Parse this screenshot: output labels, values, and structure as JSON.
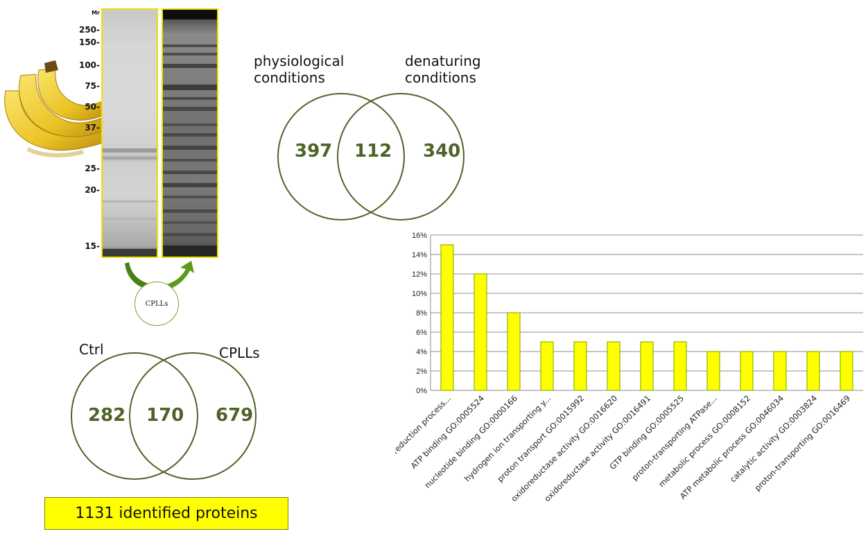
{
  "gel": {
    "mr_header": "Mr",
    "markers": [
      "250-",
      "150-",
      "100-",
      "75-",
      "50-",
      "37-",
      "25-",
      "20-",
      "15-"
    ]
  },
  "cpll_step": {
    "label": "CPLLs"
  },
  "venn_conditions": {
    "left_label_line1": "physiological",
    "left_label_line2": "conditions",
    "right_label_line1": "denaturing",
    "right_label_line2": "conditions",
    "left_only": "397",
    "overlap": "112",
    "right_only": "340"
  },
  "venn_treatment": {
    "left_label": "Ctrl",
    "right_label": "CPLLs",
    "left_only": "282",
    "overlap": "170",
    "right_only": "679"
  },
  "total_box": {
    "text": "1131 identified proteins"
  },
  "colors": {
    "bar_fill": "#ffff00",
    "bar_stroke": "#8db600",
    "venn_stroke": "#4f6228",
    "arrow": "#4a7f13"
  },
  "chart_data": {
    "type": "bar",
    "categories": [
      "oxidation-reduction process...",
      "ATP binding GO:0005524",
      "nucleotide binding GO:0000166",
      "hydrogen ion transporting y...",
      "proton transport GO:0015992",
      "oxidoreductase activity  GO:0016620",
      "oxidoreductase activity GO:0016491",
      "GTP binding GO:0005525",
      "proton-transporting ATPase...",
      "metabolic process GO:0008152",
      "ATP metabolic process GO:0046034",
      "catalytic activity GO:0003824",
      "proton-transporting  GO:0016469"
    ],
    "values": [
      15,
      12,
      8,
      5,
      5,
      5,
      5,
      5,
      4,
      4,
      4,
      4,
      4
    ],
    "ylim": [
      0,
      16
    ],
    "yticks": [
      "0%",
      "2%",
      "4%",
      "6%",
      "8%",
      "10%",
      "12%",
      "14%",
      "16%"
    ],
    "grid": true
  }
}
